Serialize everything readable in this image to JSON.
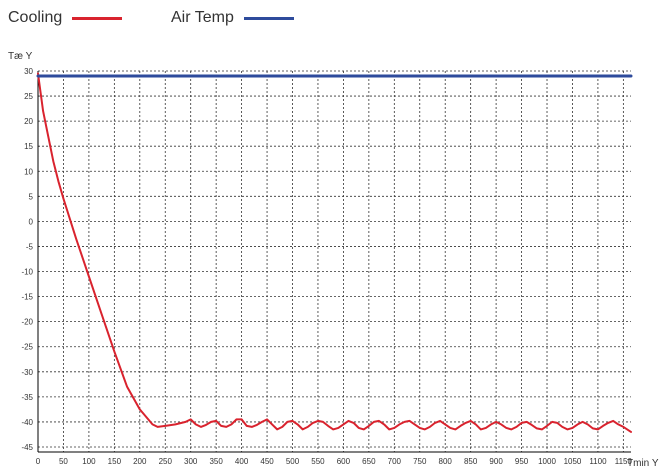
{
  "chart_data": {
    "type": "line",
    "title": "",
    "xlabel": "Tmin Y",
    "ylabel": "Tæ Y",
    "xlim": [
      0,
      1165
    ],
    "ylim": [
      -46,
      30
    ],
    "x_ticks": [
      0,
      50,
      100,
      150,
      200,
      250,
      300,
      350,
      400,
      450,
      500,
      550,
      600,
      650,
      700,
      750,
      800,
      850,
      900,
      950,
      1000,
      1050,
      1100,
      1150
    ],
    "y_ticks": [
      30,
      25,
      20,
      15,
      10,
      5,
      0,
      -5,
      -10,
      -15,
      -20,
      -25,
      -30,
      -35,
      -40,
      -45
    ],
    "grid": true,
    "legend_position": "top-left",
    "series": [
      {
        "name": "Cooling",
        "color": "#d9232e",
        "x": [
          0,
          10,
          20,
          30,
          40,
          50,
          75,
          100,
          125,
          150,
          175,
          200,
          225,
          235,
          250,
          270,
          290,
          300,
          310,
          320,
          330,
          340,
          350,
          360,
          370,
          380,
          390,
          400,
          410,
          420,
          430,
          440,
          450,
          460,
          470,
          480,
          490,
          500,
          510,
          520,
          530,
          540,
          550,
          560,
          570,
          580,
          590,
          600,
          610,
          620,
          630,
          640,
          650,
          660,
          670,
          680,
          690,
          700,
          710,
          720,
          730,
          740,
          750,
          760,
          770,
          780,
          790,
          800,
          810,
          820,
          830,
          840,
          850,
          860,
          870,
          880,
          890,
          900,
          910,
          920,
          930,
          940,
          950,
          960,
          970,
          980,
          990,
          1000,
          1010,
          1020,
          1030,
          1040,
          1050,
          1060,
          1070,
          1080,
          1090,
          1100,
          1110,
          1120,
          1130,
          1140,
          1150,
          1165
        ],
        "y": [
          29.5,
          22,
          17,
          12,
          8,
          4.5,
          -3.5,
          -11,
          -18.5,
          -26,
          -33,
          -37.5,
          -40.5,
          -41,
          -40.8,
          -40.5,
          -40,
          -39.5,
          -40.5,
          -41,
          -40.6,
          -40,
          -39.8,
          -40.8,
          -41,
          -40.5,
          -39.5,
          -39.5,
          -40.8,
          -41,
          -40.6,
          -40,
          -39.5,
          -40.5,
          -41.5,
          -41,
          -40,
          -39.8,
          -40.5,
          -41.5,
          -41,
          -40.2,
          -39.8,
          -40,
          -40.8,
          -41.5,
          -41.2,
          -40.5,
          -39.8,
          -40.2,
          -41.2,
          -41.5,
          -40.8,
          -40,
          -39.8,
          -40.5,
          -41.5,
          -41.2,
          -40.5,
          -40,
          -39.8,
          -40.5,
          -41.2,
          -41.5,
          -41,
          -40.2,
          -39.8,
          -40.5,
          -41.2,
          -41.5,
          -40.8,
          -40.2,
          -39.8,
          -40.5,
          -41.5,
          -41.2,
          -40.5,
          -40,
          -40.5,
          -41.2,
          -41.5,
          -41,
          -40.2,
          -40,
          -40.6,
          -41.3,
          -41.5,
          -40.8,
          -40,
          -40.2,
          -41,
          -41.5,
          -41.2,
          -40.5,
          -40,
          -40.5,
          -41.3,
          -41.5,
          -40.8,
          -40.2,
          -39.8,
          -40.5,
          -41,
          -42
        ]
      },
      {
        "name": "Air Temp",
        "color": "#2e4b9c",
        "x": [
          0,
          1165
        ],
        "y": [
          29,
          29
        ]
      }
    ]
  }
}
